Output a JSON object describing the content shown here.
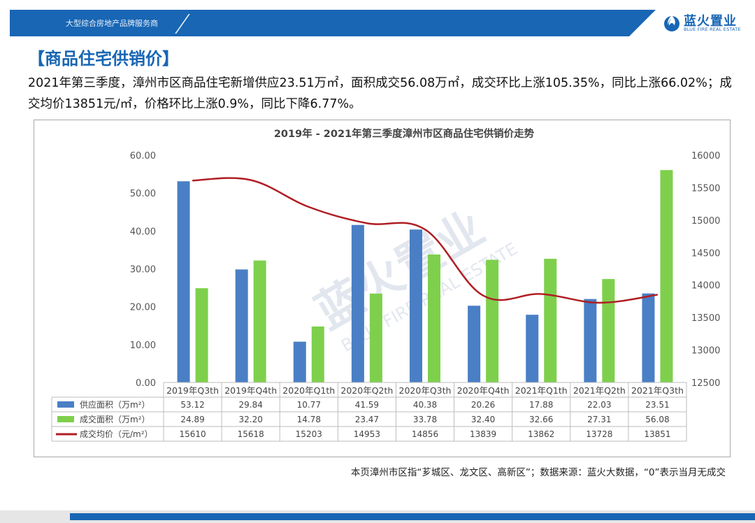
{
  "header": {
    "tagline": "大型综合房地产品牌服务商",
    "logo_cn": "蓝火置业",
    "logo_en": "BLUE FIRE REAL ESTATE",
    "brand_color": "#1866b4"
  },
  "section_title": "【商品住宅供销价】",
  "summary": "2021年第三季度，漳州市区商品住宅新增供应23.51万㎡，面积成交56.08万㎡，成交环比上涨105.35%，同比上涨66.02%；成交均价13851元/㎡，价格环比上涨0.9%，同比下降6.77%。",
  "footnote": "本页漳州市区指“芗城区、龙文区、高新区”；数据来源：蓝火大数据，“0”表示当月无成交",
  "chart_data": {
    "type": "bar",
    "title": "2019年 - 2021年第三季度漳州市区商品住宅供销价走势",
    "categories": [
      "2019年Q3th",
      "2019年Q4th",
      "2020年Q1th",
      "2020年Q2th",
      "2020年Q3th",
      "2020年Q4th",
      "2021年Q1th",
      "2021年Q2th",
      "2021年Q3th"
    ],
    "series": [
      {
        "name": "供应面积（万m²）",
        "type": "bar",
        "axis": "left",
        "color": "#4a7fc5",
        "values": [
          53.12,
          29.84,
          10.77,
          41.59,
          40.38,
          20.26,
          17.88,
          22.03,
          23.51
        ],
        "labels": [
          "53.12",
          "29.84",
          "10.77",
          "41.59",
          "40.38",
          "20.26",
          "17.88",
          "22.03",
          "23.51"
        ]
      },
      {
        "name": "成交面积（万m²）",
        "type": "bar",
        "axis": "left",
        "color": "#7ed04c",
        "values": [
          24.89,
          32.2,
          14.78,
          23.47,
          33.78,
          32.4,
          32.66,
          27.31,
          56.08
        ],
        "labels": [
          "24.89",
          "32.20",
          "14.78",
          "23.47",
          "33.78",
          "32.40",
          "32.66",
          "27.31",
          "56.08"
        ]
      },
      {
        "name": "成交均价（元/m²）",
        "type": "line",
        "axis": "right",
        "color": "#b01e24",
        "values": [
          15610,
          15618,
          15203,
          14953,
          14856,
          13839,
          13862,
          13728,
          13851
        ],
        "labels": [
          "15610",
          "15618",
          "15203",
          "14953",
          "14856",
          "13839",
          "13862",
          "13728",
          "13851"
        ]
      }
    ],
    "left_axis": {
      "min": 0,
      "max": 60,
      "step": 10,
      "ticks": [
        "0.00",
        "10.00",
        "20.00",
        "30.00",
        "40.00",
        "50.00",
        "60.00"
      ]
    },
    "right_axis": {
      "min": 12500,
      "max": 16000,
      "step": 500,
      "ticks": [
        "12500",
        "13000",
        "13500",
        "14000",
        "14500",
        "15000",
        "15500",
        "16000"
      ]
    },
    "grid": false,
    "legend": "data-table-below",
    "watermark_cn": "蓝火置业",
    "watermark_en": "BLUE FIRE REAL ESTATE"
  }
}
